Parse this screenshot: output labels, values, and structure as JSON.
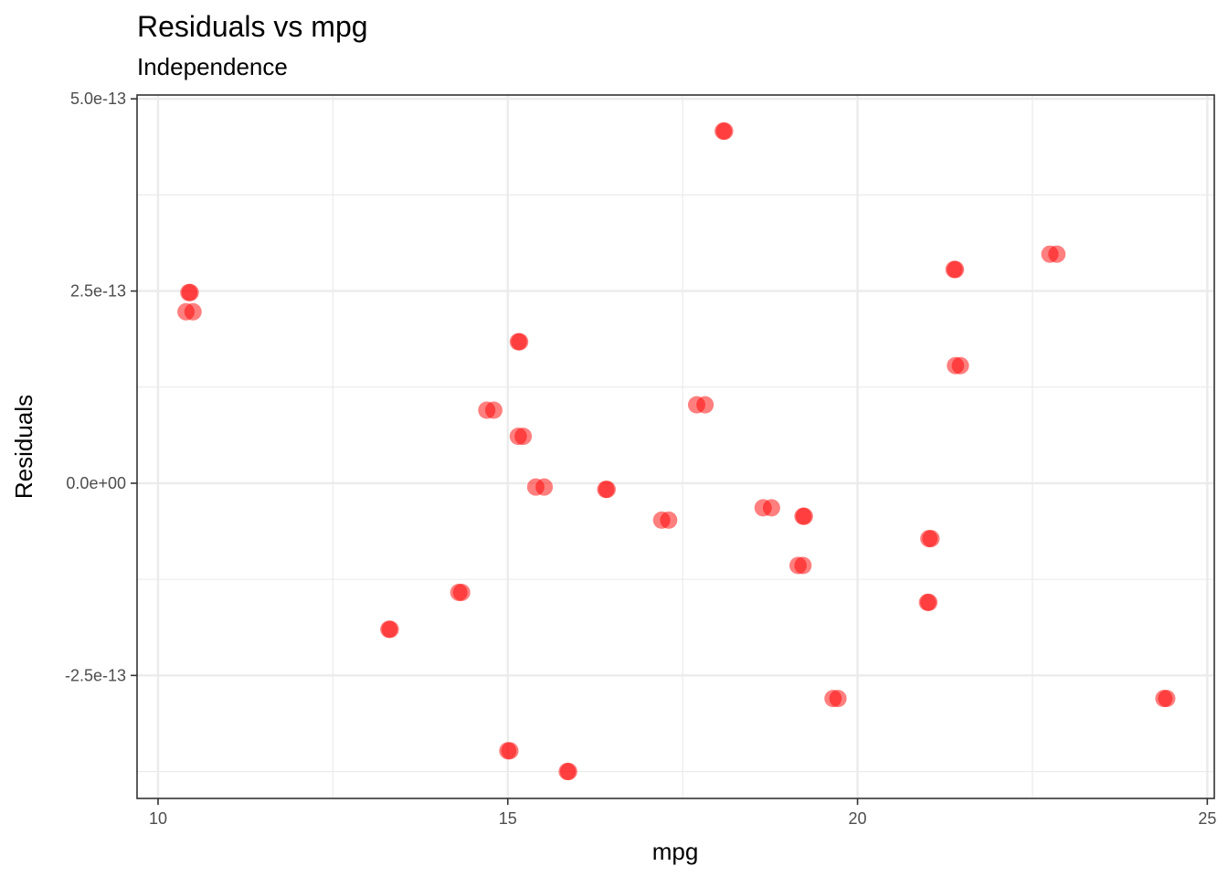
{
  "chart_data": {
    "type": "scatter",
    "title": "Residuals vs mpg",
    "subtitle": "Independence",
    "xlabel": "mpg",
    "ylabel": "Residuals",
    "xlim": [
      9.7,
      25.1
    ],
    "ylim": [
      -4.1e-13,
      5.05e-13
    ],
    "x_ticks": [
      10,
      15,
      20,
      25
    ],
    "x_tick_labels": [
      "10",
      "15",
      "20",
      "25"
    ],
    "x_minor_ticks": [
      12.5,
      17.5,
      22.5
    ],
    "y_ticks": [
      -2.5e-13,
      0,
      2.5e-13,
      5e-13
    ],
    "y_tick_labels": [
      "-2.5e-13",
      "0.0e+00",
      "2.5e-13",
      "5.0e-13"
    ],
    "y_minor_ticks": [
      -3.75e-13,
      -1.25e-13,
      1.25e-13,
      3.75e-13
    ],
    "grid": true,
    "point_color": "#FF0000",
    "point_opacity": 0.5,
    "points": [
      {
        "x": 10.4,
        "y": 2.23e-13
      },
      {
        "x": 10.5,
        "y": 2.23e-13
      },
      {
        "x": 10.44,
        "y": 2.48e-13
      },
      {
        "x": 10.46,
        "y": 2.48e-13
      },
      {
        "x": 13.3,
        "y": -1.9e-13
      },
      {
        "x": 13.32,
        "y": -1.9e-13
      },
      {
        "x": 14.3,
        "y": -1.42e-13
      },
      {
        "x": 14.34,
        "y": -1.42e-13
      },
      {
        "x": 14.7,
        "y": 9.5e-14
      },
      {
        "x": 14.8,
        "y": 9.5e-14
      },
      {
        "x": 15.0,
        "y": -3.48e-13
      },
      {
        "x": 15.03,
        "y": -3.48e-13
      },
      {
        "x": 15.15,
        "y": 1.84e-13
      },
      {
        "x": 15.17,
        "y": 1.84e-13
      },
      {
        "x": 15.15,
        "y": 6.1e-14
      },
      {
        "x": 15.22,
        "y": 6.1e-14
      },
      {
        "x": 15.4,
        "y": -5e-15
      },
      {
        "x": 15.52,
        "y": -5e-15
      },
      {
        "x": 15.85,
        "y": -3.75e-13
      },
      {
        "x": 15.87,
        "y": -3.75e-13
      },
      {
        "x": 16.4,
        "y": -8e-15
      },
      {
        "x": 16.42,
        "y": -8e-15
      },
      {
        "x": 17.2,
        "y": -4.8e-14
      },
      {
        "x": 17.3,
        "y": -4.8e-14
      },
      {
        "x": 17.7,
        "y": 1.02e-13
      },
      {
        "x": 17.82,
        "y": 1.02e-13
      },
      {
        "x": 18.08,
        "y": 4.58e-13
      },
      {
        "x": 18.1,
        "y": 4.58e-13
      },
      {
        "x": 18.65,
        "y": -3.2e-14
      },
      {
        "x": 18.77,
        "y": -3.2e-14
      },
      {
        "x": 19.15,
        "y": -1.07e-13
      },
      {
        "x": 19.22,
        "y": -1.07e-13
      },
      {
        "x": 19.22,
        "y": -4.3e-14
      },
      {
        "x": 19.24,
        "y": -4.3e-14
      },
      {
        "x": 19.65,
        "y": -2.8e-13
      },
      {
        "x": 19.72,
        "y": -2.8e-13
      },
      {
        "x": 21.0,
        "y": -1.55e-13
      },
      {
        "x": 21.02,
        "y": -1.55e-13
      },
      {
        "x": 21.02,
        "y": -7.2e-14
      },
      {
        "x": 21.05,
        "y": -7.2e-14
      },
      {
        "x": 21.38,
        "y": 2.78e-13
      },
      {
        "x": 21.4,
        "y": 2.78e-13
      },
      {
        "x": 21.4,
        "y": 1.53e-13
      },
      {
        "x": 21.47,
        "y": 1.53e-13
      },
      {
        "x": 22.75,
        "y": 2.98e-13
      },
      {
        "x": 22.85,
        "y": 2.98e-13
      },
      {
        "x": 24.38,
        "y": -2.8e-13
      },
      {
        "x": 24.42,
        "y": -2.8e-13
      }
    ]
  }
}
